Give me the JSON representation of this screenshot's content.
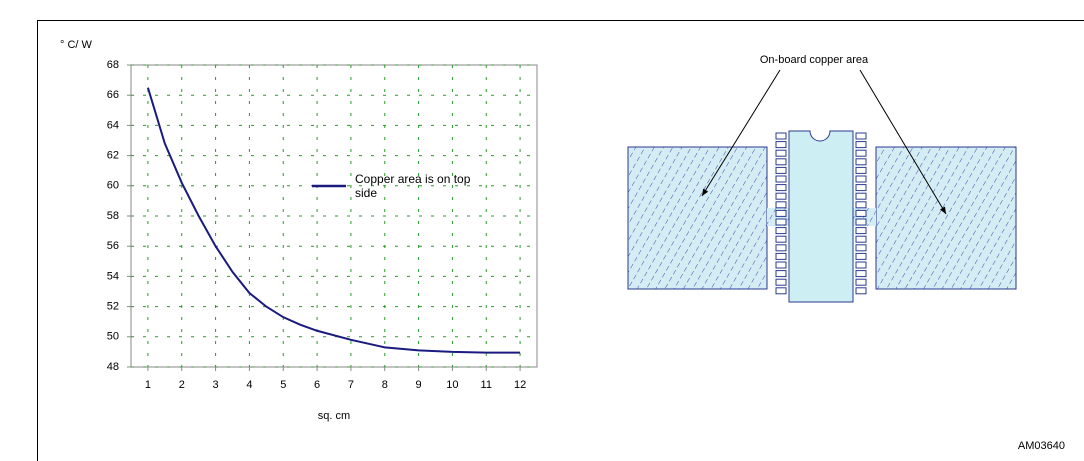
{
  "chart_data": {
    "type": "line",
    "y_label": "° C/ W",
    "x_label": "sq. cm",
    "x": [
      1,
      1.5,
      2,
      2.5,
      3,
      3.5,
      4,
      4.5,
      5,
      5.5,
      6,
      7,
      8,
      9,
      10,
      11,
      12
    ],
    "series": [
      {
        "name": "Copper area is on top side",
        "color": "#1a1a80",
        "values": [
          66.5,
          62.8,
          60.2,
          58,
          56,
          54.3,
          52.9,
          52,
          51.3,
          50.8,
          50.4,
          49.8,
          49.3,
          49.1,
          49,
          48.95,
          48.95
        ]
      }
    ],
    "xlim": [
      0.5,
      12.5
    ],
    "xticks": [
      1,
      2,
      3,
      4,
      5,
      6,
      7,
      8,
      9,
      10,
      11,
      12
    ],
    "ylim": [
      48,
      68
    ],
    "yticks": [
      48,
      50,
      52,
      54,
      56,
      58,
      60,
      62,
      64,
      66,
      68
    ],
    "grid": true
  },
  "diagram": {
    "label": "On-board copper area"
  },
  "figure_id": "AM03640"
}
